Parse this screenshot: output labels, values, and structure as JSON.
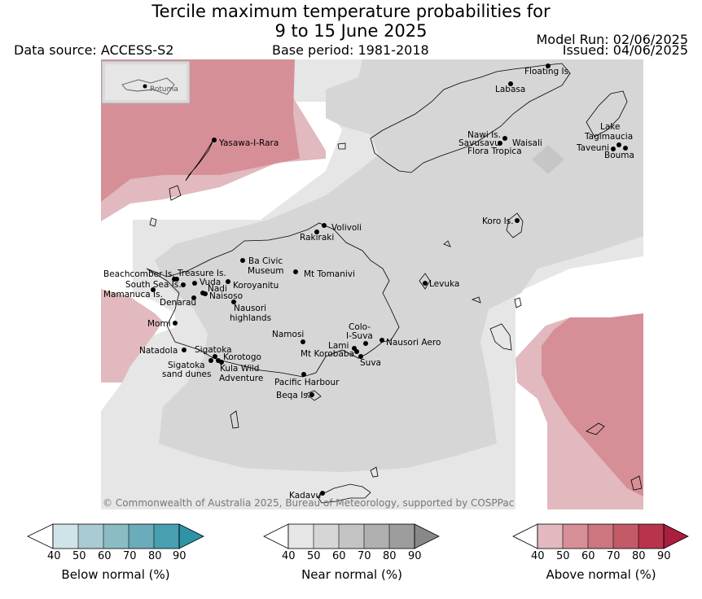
{
  "title_line1": "Tercile maximum temperature probabilities for",
  "title_line2": "9 to 15 June 2025",
  "data_source": "Data source: ACCESS-S2",
  "base_period": "Base period: 1981-2018",
  "model_run": "Model Run: 02/06/2025",
  "issued": "Issued: 04/06/2025",
  "copyright": "© Commonwealth of Australia 2025, Bureau of Meteorology, supported by COSPPac",
  "inset_label": "Rotuma",
  "places": {
    "floating_is": "Floating Is.",
    "labasa": "Labasa",
    "yasawa": "Yasawa-I-Rara",
    "nawi": "Nawi Is.",
    "savusavu": "Savusavu",
    "flora": "Flora Tropica",
    "waisali": "Waisali",
    "lake1": "Lake",
    "lake2": "Tagimaucia",
    "taveuni": "Taveuni",
    "bouma": "Bouma",
    "koro": "Koro Is.",
    "volivoli": "Volivoli",
    "rakiraki": "Rakiraki",
    "ba_civic1": "Ba Civic",
    "ba_civic2": "Museum",
    "mt_tomanivi": "Mt Tomanivi",
    "beachcomber": "Beachcomber Is.",
    "treasure": "Treasure Is.",
    "south_sea": "South Sea Is.",
    "vuda": "Vuda",
    "koroyanitu": "Koroyanitu",
    "nadi": "Nadi",
    "mamanuca": "Mamanuca Is.",
    "naisoso": "Naisoso",
    "denarau": "Denarau",
    "nausori_hl1": "Nausori",
    "nausori_hl2": "highlands",
    "levuka": "Levuka",
    "momi": "Momi",
    "namosi": "Namosi",
    "colo1": "Colo-",
    "colo2": "I-Suva",
    "natadola": "Natadola",
    "sigatoka": "Sigatoka",
    "lami": "Lami",
    "nausori_aero": "Nausori Aero",
    "mt_korobaba": "Mt Korobaba",
    "korotogo": "Korotogo",
    "suva": "Suva",
    "sig_dunes1": "Sigatoka",
    "sig_dunes2": "sand dunes",
    "kula1": "Kula Wild",
    "kula2": "Adventure",
    "pacific_harbour": "Pacific Harbour",
    "beqa": "Beqa Is.",
    "kadavu": "Kadavu"
  },
  "colorbars": {
    "below": {
      "title": "Below normal (%)",
      "ticks": [
        "40",
        "50",
        "60",
        "70",
        "80",
        "90"
      ],
      "colors": [
        "#ffffff",
        "#cfe3e8",
        "#a9cbd2",
        "#8bbcc5",
        "#6aacb9",
        "#47a0b2",
        "#2f93a8"
      ]
    },
    "near": {
      "title": "Near normal (%)",
      "ticks": [
        "40",
        "50",
        "60",
        "70",
        "80",
        "90"
      ],
      "colors": [
        "#ffffff",
        "#e6e6e6",
        "#d6d6d6",
        "#c4c4c4",
        "#b0b0b0",
        "#9d9d9d",
        "#888888"
      ]
    },
    "above": {
      "title": "Above normal (%)",
      "ticks": [
        "40",
        "50",
        "60",
        "70",
        "80",
        "90"
      ],
      "colors": [
        "#ffffff",
        "#e1b9be",
        "#d68f97",
        "#cc7680",
        "#c35b67",
        "#b8344c",
        "#aa1e3e"
      ]
    }
  },
  "colors": {
    "above_40": "#e1b9be",
    "above_50": "#d68f97",
    "above_60": "#cc7680",
    "near_40": "#e6e6e6",
    "near_50": "#d6d6d6",
    "near_60": "#c6c6c6"
  }
}
